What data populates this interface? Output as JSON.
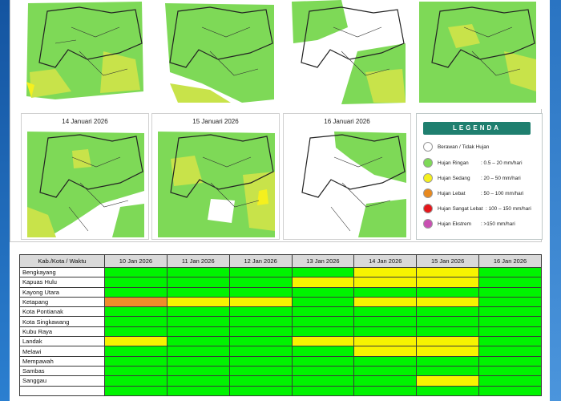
{
  "maps": {
    "titles": [
      "14 Januari 2026",
      "15 Januari 2026",
      "16 Januari 2026"
    ]
  },
  "legend": {
    "title": "LEGENDA",
    "items": [
      {
        "name": "Berawan / Tidak Hujan",
        "range": "",
        "color": "#ffffff"
      },
      {
        "name": "Hujan Ringan",
        "range": ": 0.5 – 20 mm/hari",
        "color": "#7ed957"
      },
      {
        "name": "Hujan Sedang",
        "range": ": 20 – 50 mm/hari",
        "color": "#f5f01e"
      },
      {
        "name": "Hujan Lebat",
        "range": ": 50 – 100 mm/hari",
        "color": "#e8891e"
      },
      {
        "name": "Hujan Sangat Lebat",
        "range": ": 100 – 150 mm/hari",
        "color": "#e4161b"
      },
      {
        "name": "Hujan Ekstrem",
        "range": ": >150 mm/hari",
        "color": "#c94fb2"
      }
    ]
  },
  "table": {
    "header": [
      "Kab./Kota / Waktu",
      "10 Jan 2026",
      "11 Jan 2026",
      "12 Jan 2026",
      "13 Jan 2026",
      "14 Jan 2026",
      "15 Jan 2026",
      "16 Jan 2026"
    ],
    "category_colors": {
      "H": "#00f400",
      "M": "#f7f400",
      "L": "#ef8d2a"
    },
    "rows": [
      {
        "name": "Bengkayang",
        "cells": [
          "H",
          "H",
          "H",
          "H",
          "M",
          "M",
          "H"
        ]
      },
      {
        "name": "Kapuas Hulu",
        "cells": [
          "H",
          "H",
          "H",
          "M",
          "M",
          "M",
          "H"
        ]
      },
      {
        "name": "Kayong Utara",
        "cells": [
          "H",
          "H",
          "H",
          "H",
          "H",
          "H",
          "H"
        ]
      },
      {
        "name": "Ketapang",
        "cells": [
          "L",
          "M",
          "M",
          "H",
          "M",
          "M",
          "H"
        ]
      },
      {
        "name": "Kota Pontianak",
        "cells": [
          "H",
          "H",
          "H",
          "H",
          "H",
          "H",
          "H"
        ]
      },
      {
        "name": "Kota Singkawang",
        "cells": [
          "H",
          "H",
          "H",
          "H",
          "H",
          "H",
          "H"
        ]
      },
      {
        "name": "Kubu Raya",
        "cells": [
          "H",
          "H",
          "H",
          "H",
          "H",
          "H",
          "H"
        ]
      },
      {
        "name": "Landak",
        "cells": [
          "M",
          "H",
          "H",
          "M",
          "M",
          "M",
          "H"
        ]
      },
      {
        "name": "Melawi",
        "cells": [
          "H",
          "H",
          "H",
          "H",
          "M",
          "M",
          "H"
        ]
      },
      {
        "name": "Mempawah",
        "cells": [
          "H",
          "H",
          "H",
          "H",
          "H",
          "H",
          "H"
        ]
      },
      {
        "name": "Sambas",
        "cells": [
          "H",
          "H",
          "H",
          "H",
          "H",
          "H",
          "H"
        ]
      },
      {
        "name": "Sanggau",
        "cells": [
          "H",
          "H",
          "H",
          "H",
          "H",
          "M",
          "H"
        ]
      },
      {
        "name": "",
        "cells": [
          "H",
          "H",
          "H",
          "H",
          "H",
          "H",
          "H"
        ]
      }
    ]
  }
}
